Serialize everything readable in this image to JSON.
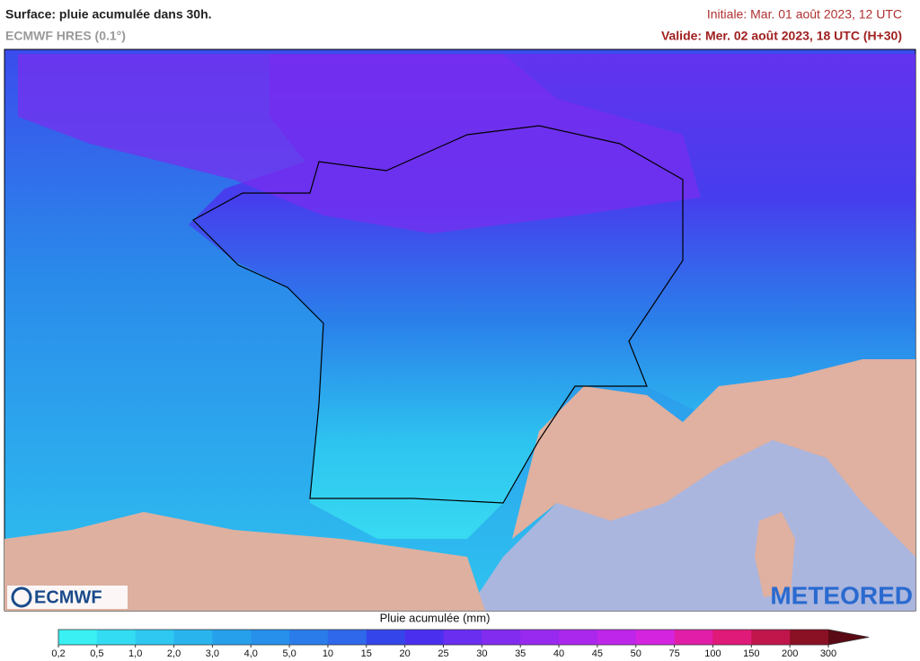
{
  "header": {
    "title": "Surface: pluie acumulée dans 30h.",
    "model": "ECMWF HRES (0.1°)",
    "initial": "Initiale: Mar. 01 août 2023, 12 UTC",
    "valid": "Valide: Mer. 02 août 2023, 18 UTC (H+30)"
  },
  "logos": {
    "left": "ECMWF",
    "right": "METEORED"
  },
  "colorbar": {
    "label": "Pluie acumulée (mm)",
    "ticks": [
      "0,2",
      "0,5",
      "1,0",
      "2,0",
      "3,0",
      "4,0",
      "5,0",
      "10",
      "15",
      "20",
      "25",
      "30",
      "35",
      "40",
      "45",
      "50",
      "75",
      "100",
      "150",
      "200",
      "300"
    ],
    "colors": [
      "#3af0f2",
      "#33dcf2",
      "#2ec8f0",
      "#2ab4ee",
      "#27a0ec",
      "#2690ea",
      "#2a7cea",
      "#2f68ea",
      "#3446ea",
      "#4a30ee",
      "#6a2ef0",
      "#822cf0",
      "#982af0",
      "#aa28ee",
      "#be26ea",
      "#d424e0",
      "#e01ea8",
      "#e01a78",
      "#c0164c",
      "#8a1024"
    ],
    "extend_color": "#5a0a14"
  }
}
